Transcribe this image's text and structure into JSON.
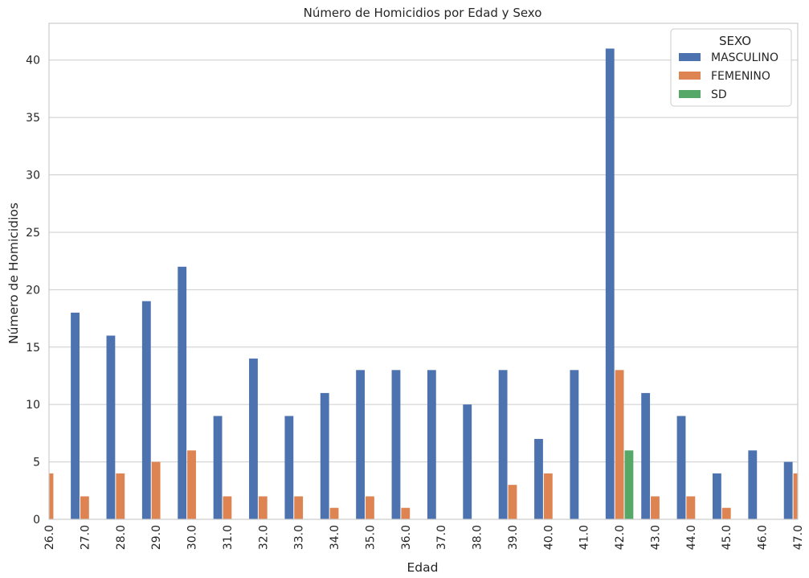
{
  "chart_data": {
    "type": "bar",
    "title": "Número de Homicidios por Edad y Sexo",
    "xlabel": "Edad",
    "ylabel": "Número de Homicidios",
    "ylim": [
      0,
      43.2
    ],
    "yticks": [
      0,
      5,
      10,
      15,
      20,
      25,
      30,
      35,
      40
    ],
    "grid": true,
    "categories": [
      "26.0",
      "27.0",
      "28.0",
      "29.0",
      "30.0",
      "31.0",
      "32.0",
      "33.0",
      "34.0",
      "35.0",
      "36.0",
      "37.0",
      "38.0",
      "39.0",
      "40.0",
      "41.0",
      "42.0",
      "43.0",
      "44.0",
      "45.0",
      "46.0",
      "47.0"
    ],
    "legend": {
      "title": "SEXO",
      "position": "top-right"
    },
    "series": [
      {
        "name": "MASCULINO",
        "color": "#4c72b0",
        "values": [
          null,
          18,
          16,
          19,
          22,
          9,
          14,
          9,
          11,
          13,
          13,
          13,
          10,
          13,
          7,
          13,
          41,
          11,
          9,
          4,
          6,
          5
        ]
      },
      {
        "name": "FEMENINO",
        "color": "#dd8452",
        "values": [
          4,
          2,
          4,
          5,
          6,
          2,
          2,
          2,
          1,
          2,
          1,
          null,
          null,
          3,
          4,
          null,
          13,
          2,
          2,
          1,
          null,
          4
        ]
      },
      {
        "name": "SD",
        "color": "#55a868",
        "values": [
          null,
          null,
          null,
          null,
          null,
          null,
          null,
          null,
          null,
          null,
          null,
          null,
          null,
          null,
          null,
          null,
          6,
          null,
          null,
          null,
          null,
          null
        ]
      }
    ]
  }
}
